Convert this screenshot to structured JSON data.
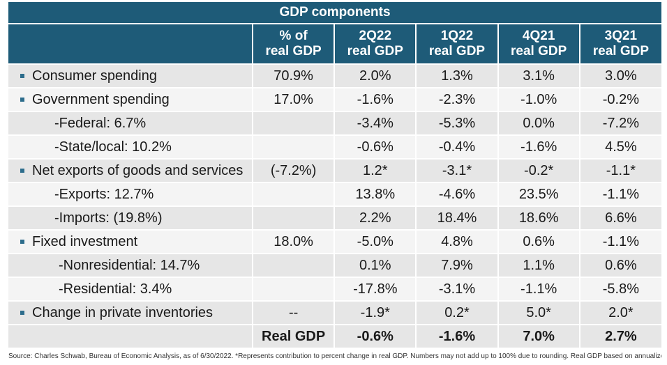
{
  "title": "GDP components",
  "columns": [
    "",
    "% of real GDP",
    "2Q22 real GDP",
    "1Q22 real GDP",
    "4Q21 real GDP",
    "3Q21 real GDP"
  ],
  "header": {
    "c1a": "% of",
    "c1b": "real GDP",
    "c2a": "2Q22",
    "c2b": "real GDP",
    "c3a": "1Q22",
    "c3b": "real GDP",
    "c4a": "4Q21",
    "c4b": "real GDP",
    "c5a": "3Q21",
    "c5b": "real GDP"
  },
  "rows": [
    {
      "label": "Consumer spending",
      "bullet": true,
      "share": "70.9%",
      "q2_22": "2.0%",
      "q1_22": "1.3%",
      "q4_21": "3.1%",
      "q3_21": "3.0%"
    },
    {
      "label": "Government spending",
      "bullet": true,
      "share": "17.0%",
      "q2_22": "-1.6%",
      "q1_22": "-2.3%",
      "q4_21": "-1.0%",
      "q3_21": "-0.2%"
    },
    {
      "label": "-Federal: 6.7%",
      "bullet": false,
      "share": "",
      "q2_22": "-3.4%",
      "q1_22": "-5.3%",
      "q4_21": "0.0%",
      "q3_21": "-7.2%"
    },
    {
      "label": "-State/local: 10.2%",
      "bullet": false,
      "share": "",
      "q2_22": "-0.6%",
      "q1_22": "-0.4%",
      "q4_21": "-1.6%",
      "q3_21": "4.5%"
    },
    {
      "label": "Net exports of goods and services",
      "bullet": true,
      "share": "(-7.2%)",
      "q2_22": "1.2*",
      "q1_22": "-3.1*",
      "q4_21": "-0.2*",
      "q3_21": "-1.1*"
    },
    {
      "label": "-Exports: 12.7%",
      "bullet": false,
      "share": "",
      "q2_22": "13.8%",
      "q1_22": "-4.6%",
      "q4_21": "23.5%",
      "q3_21": "-1.1%"
    },
    {
      "label": "-Imports: (19.8%)",
      "bullet": false,
      "share": "",
      "q2_22": "2.2%",
      "q1_22": "18.4%",
      "q4_21": "18.6%",
      "q3_21": "6.6%"
    },
    {
      "label": "Fixed investment",
      "bullet": true,
      "share": "18.0%",
      "q2_22": "-5.0%",
      "q1_22": "4.8%",
      "q4_21": "0.6%",
      "q3_21": "-1.1%"
    },
    {
      "label": "-Nonresidential: 14.7%",
      "bullet": false,
      "share": "",
      "q2_22": "0.1%",
      "q1_22": "7.9%",
      "q4_21": "1.1%",
      "q3_21": "0.6%"
    },
    {
      "label": "-Residential: 3.4%",
      "bullet": false,
      "share": "",
      "q2_22": "-17.8%",
      "q1_22": "-3.1%",
      "q4_21": "-1.1%",
      "q3_21": "-5.8%"
    },
    {
      "label": "Change in private inventories",
      "bullet": true,
      "share": "--",
      "q2_22": "-1.9*",
      "q1_22": "0.2*",
      "q4_21": "5.0*",
      "q3_21": "2.0*"
    }
  ],
  "total": {
    "label": "Real GDP",
    "q2_22": "-0.6%",
    "q1_22": "-1.6%",
    "q4_21": "7.0%",
    "q3_21": "2.7%"
  },
  "source": "Source: Charles Schwab, Bureau of Economic Analysis, as of 6/30/2022. *Represents contribution to percent change in real GDP. Numbers may not add up to 100% due to rounding. Real GDP based on annualized Q/Q % change.",
  "colors": {
    "header_bg": "#1e5b78",
    "row_dark": "#e6e6e6",
    "row_light": "#f4f4f4",
    "bullet": "#2d6d8c"
  }
}
